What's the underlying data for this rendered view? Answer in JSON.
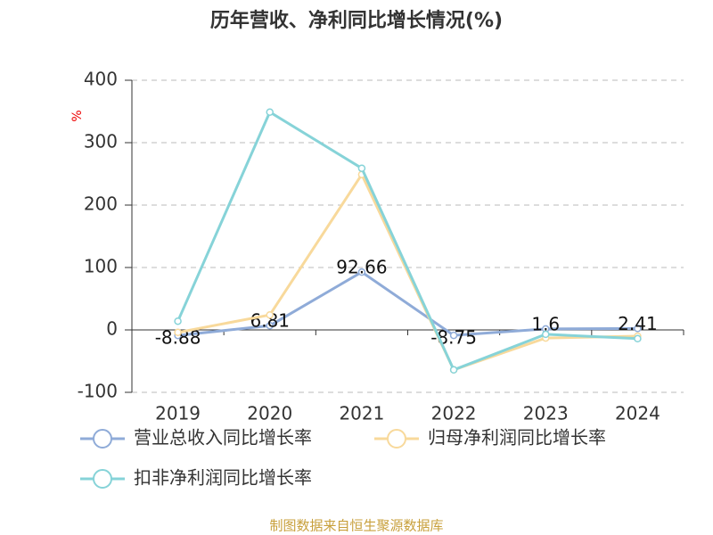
{
  "chart_data": {
    "type": "line",
    "title": "历年营收、净利同比增长情况(%)",
    "y_label": "%",
    "categories": [
      "2019",
      "2020",
      "2021",
      "2022",
      "2023",
      "2024"
    ],
    "series": [
      {
        "name": "营业总收入同比增长率",
        "color": "#8fabd8",
        "values": [
          -8.88,
          6.81,
          92.66,
          -8.75,
          1.6,
          2.41
        ],
        "show_labels": true
      },
      {
        "name": "归母净利润同比增长率",
        "color": "#f8d99b",
        "values": [
          -4,
          24,
          249,
          -64,
          -13,
          -10
        ]
      },
      {
        "name": "扣非净利润同比增长率",
        "color": "#86d3d8",
        "values": [
          14,
          349,
          259,
          -64,
          -7,
          -14
        ]
      }
    ],
    "ylim": [
      -100,
      400
    ],
    "yticks": [
      -100,
      0,
      100,
      200,
      300,
      400
    ],
    "grid": true,
    "legend": "bottom",
    "source": "制图数据来自恒生聚源数据库"
  }
}
